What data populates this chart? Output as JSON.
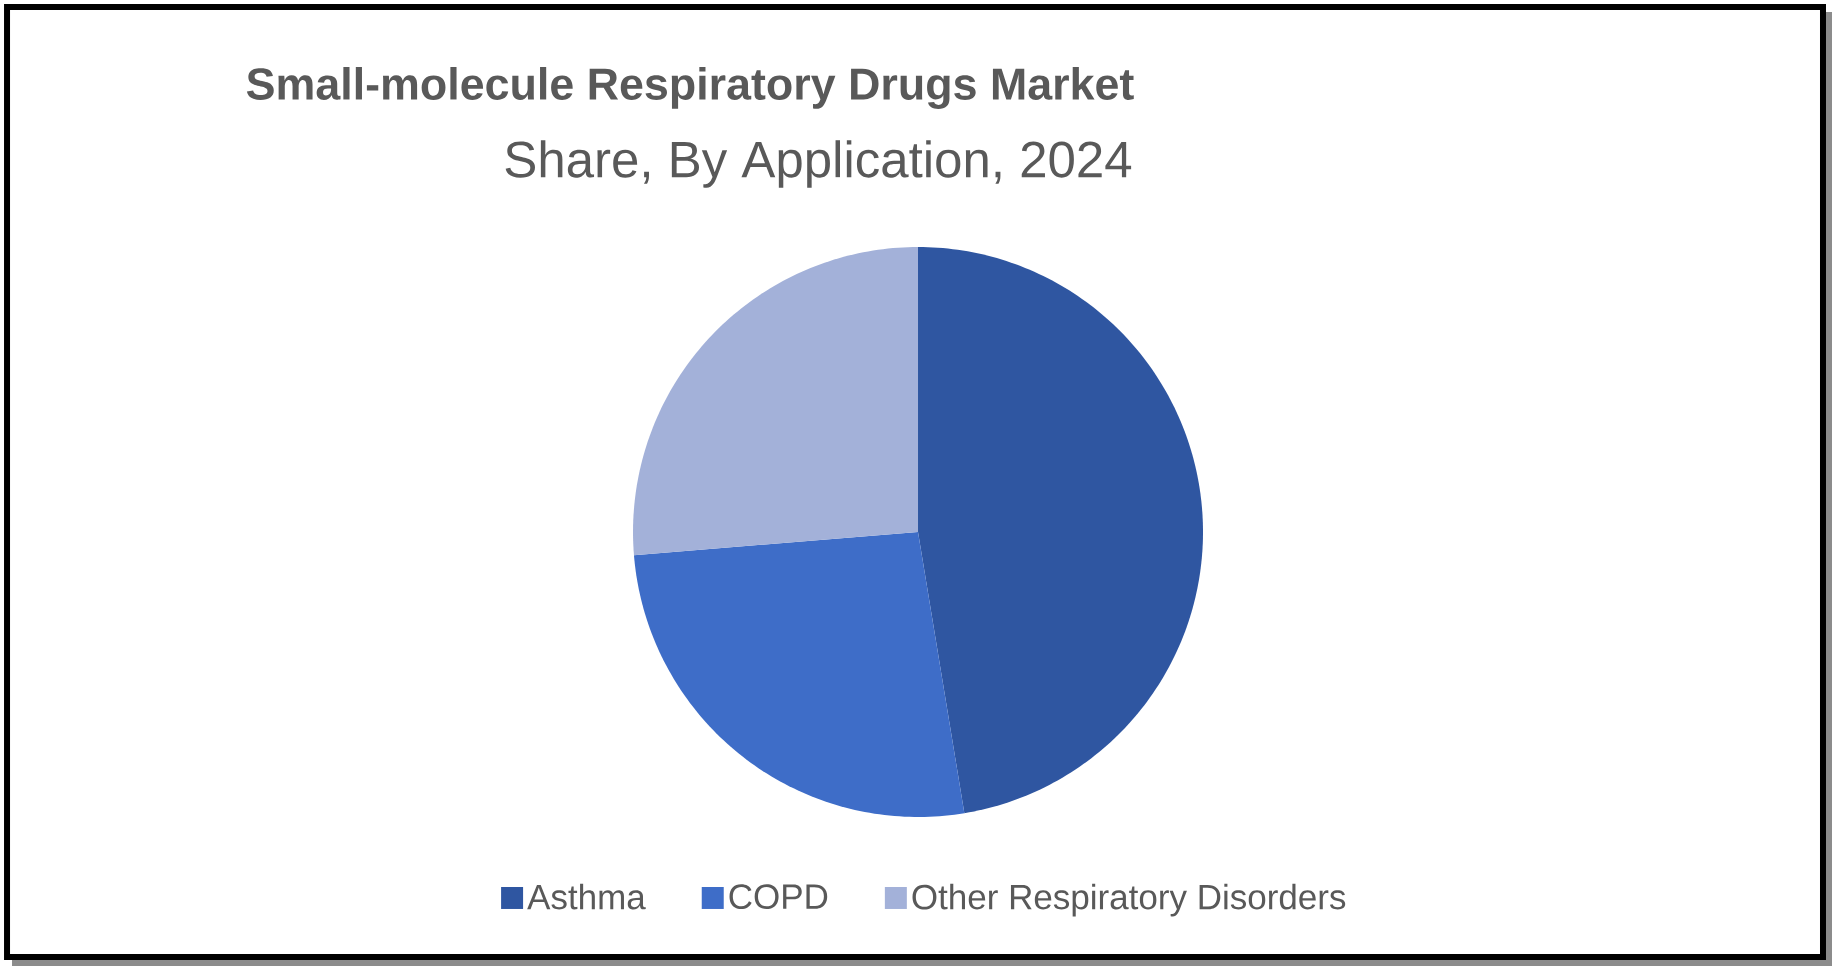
{
  "chart_data": {
    "type": "pie",
    "title": "Small-molecule Respiratory Drugs Market",
    "subtitle": "Share, By Application, 2024",
    "categories": [
      "Asthma",
      "COPD",
      "Other Respiratory Disorders"
    ],
    "values": [
      47.4,
      26.3,
      26.3
    ],
    "colors": [
      "#2f56a1",
      "#3e6dc8",
      "#a3b1d9"
    ],
    "legend": "bottom"
  }
}
